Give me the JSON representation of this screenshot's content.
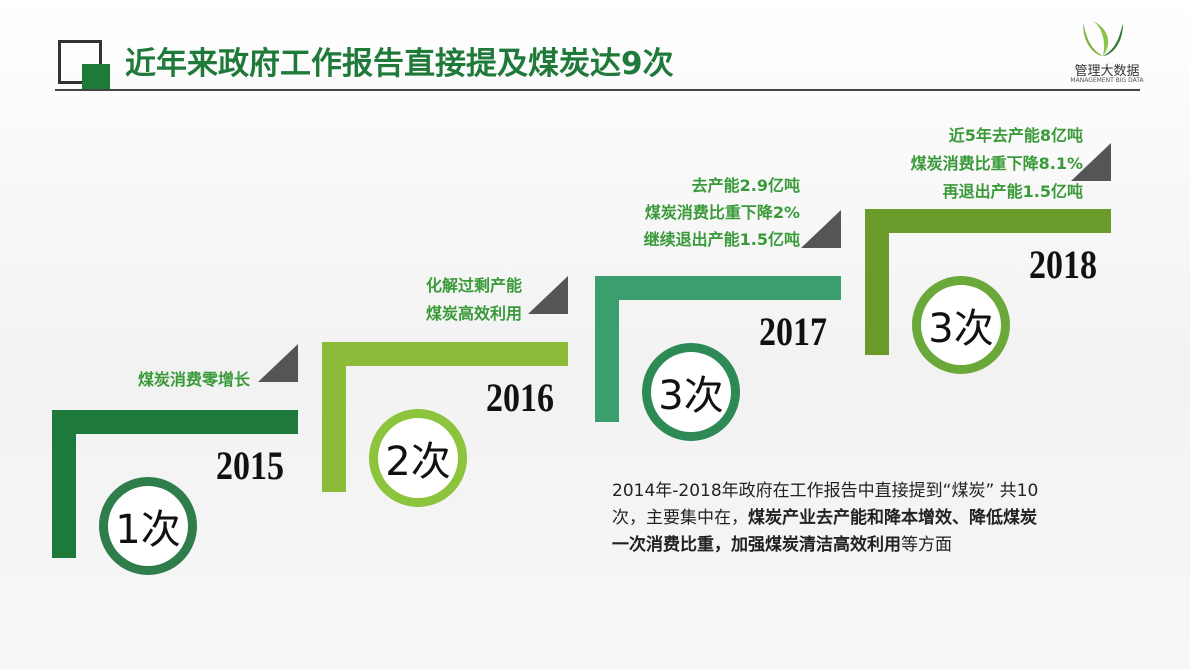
{
  "header": {
    "title": "近年来政府工作报告直接提及煤炭达9次"
  },
  "logo": {
    "name": "管理大数据",
    "subtitle": "MANAGEMENT BIG DATA"
  },
  "steps": [
    {
      "year": "2015",
      "count": "1次",
      "notes": [
        "煤炭消费零增长"
      ]
    },
    {
      "year": "2016",
      "count": "2次",
      "notes": [
        "化解过剩产能",
        "煤炭高效利用"
      ]
    },
    {
      "year": "2017",
      "count": "3次",
      "notes": [
        "去产能2.9亿吨",
        "煤炭消费比重下降2%",
        "继续退出产能1.5亿吨"
      ]
    },
    {
      "year": "2018",
      "count": "3次",
      "notes": [
        "近5年去产能8亿吨",
        "煤炭消费比重下降8.1%",
        "再退出产能1.5亿吨"
      ]
    }
  ],
  "summary": [
    {
      "text": "2014年-2018年政府在工作报告中直接提到“煤炭” 共10次，主要集中在，",
      "bold": false
    },
    {
      "text": "煤炭产业去产能和降本增效、降低煤炭一次消费比重，加强煤炭清洁高效利用",
      "bold": true
    },
    {
      "text": "等方面",
      "bold": false
    }
  ]
}
